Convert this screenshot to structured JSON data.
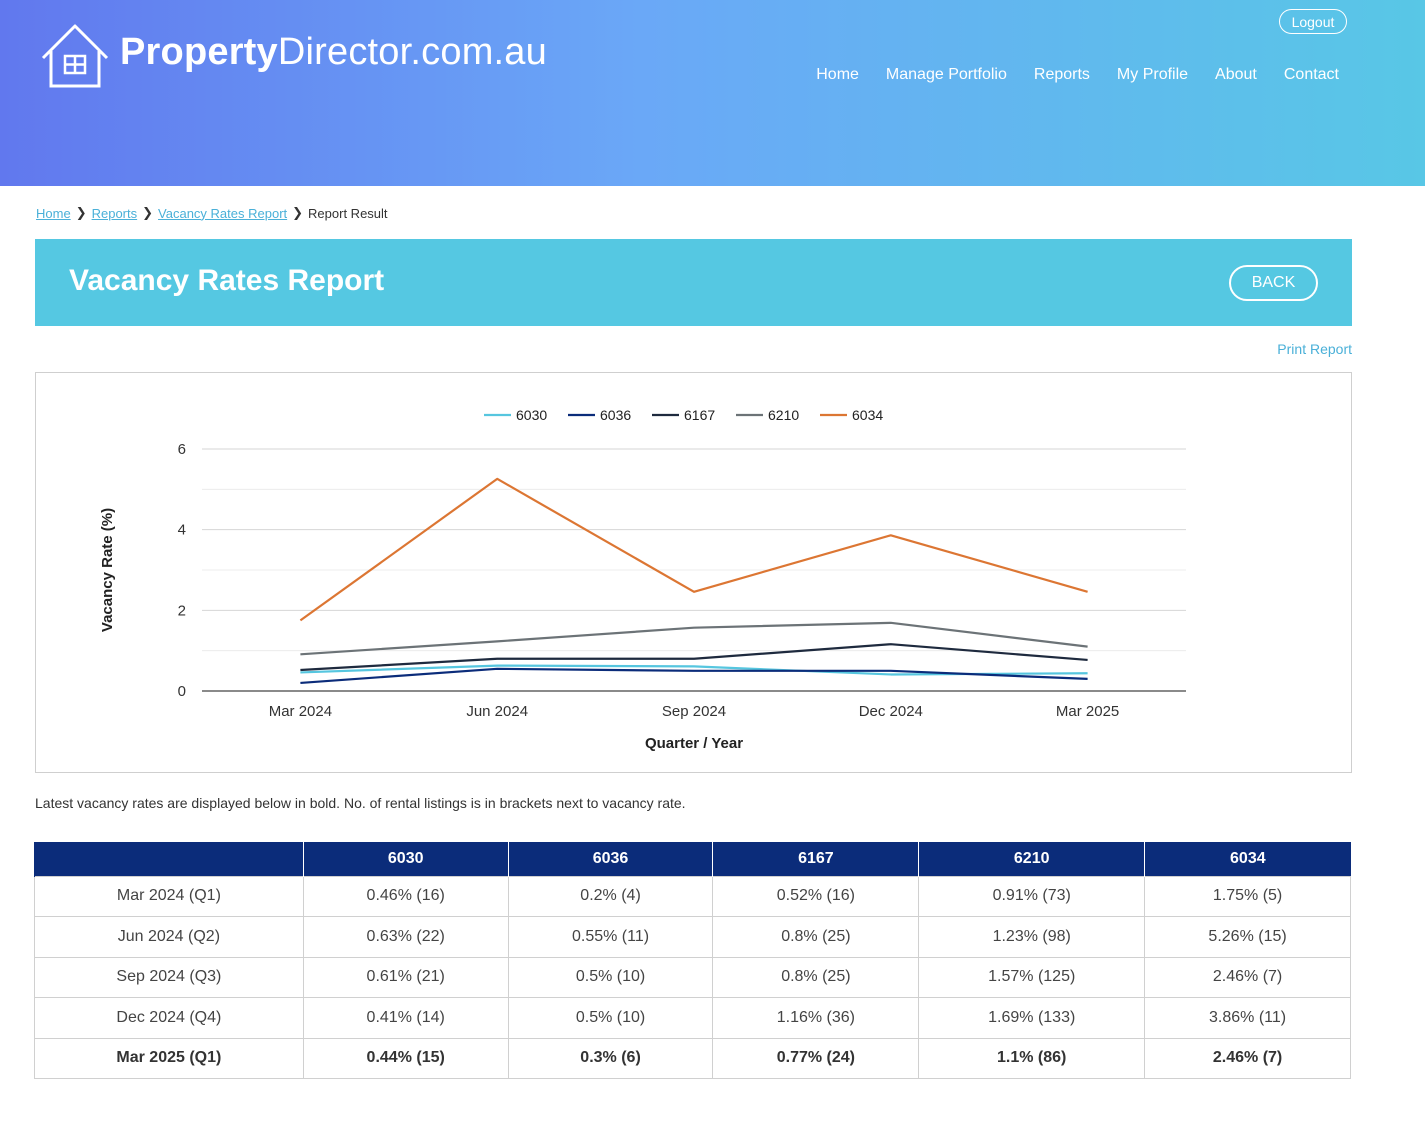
{
  "header": {
    "logo_bold": "Property",
    "logo_rest": "Director.com.au",
    "logout_label": "Logout",
    "nav": [
      "Home",
      "Manage Portfolio",
      "Reports",
      "My Profile",
      "About",
      "Contact"
    ]
  },
  "breadcrumb": {
    "items": [
      "Home",
      "Reports",
      "Vacancy Rates Report"
    ],
    "current": "Report Result"
  },
  "page": {
    "title": "Vacancy Rates Report",
    "back_label": "BACK",
    "print_label": "Print Report",
    "note": "Latest vacancy rates are displayed below in bold. No. of rental listings is in brackets next to vacancy rate."
  },
  "chart_data": {
    "type": "line",
    "categories": [
      "Mar 2024",
      "Jun 2024",
      "Sep 2024",
      "Dec 2024",
      "Mar 2025"
    ],
    "xlabel": "Quarter / Year",
    "ylabel": "Vacancy Rate (%)",
    "ylim": [
      0,
      6
    ],
    "yticks": [
      0,
      2,
      4,
      6
    ],
    "grid": true,
    "legend_position": "top-center",
    "series": [
      {
        "name": "6030",
        "color": "#56c6df",
        "values": [
          0.46,
          0.63,
          0.61,
          0.41,
          0.44
        ]
      },
      {
        "name": "6036",
        "color": "#0b2c7a",
        "values": [
          0.2,
          0.55,
          0.5,
          0.5,
          0.3
        ]
      },
      {
        "name": "6167",
        "color": "#1e2a3e",
        "values": [
          0.52,
          0.8,
          0.8,
          1.16,
          0.77
        ]
      },
      {
        "name": "6210",
        "color": "#6c7377",
        "values": [
          0.91,
          1.23,
          1.57,
          1.69,
          1.1
        ]
      },
      {
        "name": "6034",
        "color": "#dc7633",
        "values": [
          1.75,
          5.26,
          2.46,
          3.86,
          2.46
        ]
      }
    ]
  },
  "table": {
    "headers": [
      "",
      "6030",
      "6036",
      "6167",
      "6210",
      "6034"
    ],
    "rows": [
      [
        "Mar 2024 (Q1)",
        "0.46% (16)",
        "0.2% (4)",
        "0.52% (16)",
        "0.91% (73)",
        "1.75% (5)"
      ],
      [
        "Jun 2024 (Q2)",
        "0.63% (22)",
        "0.55% (11)",
        "0.8% (25)",
        "1.23% (98)",
        "5.26% (15)"
      ],
      [
        "Sep 2024 (Q3)",
        "0.61% (21)",
        "0.5% (10)",
        "0.8% (25)",
        "1.57% (125)",
        "2.46% (7)"
      ],
      [
        "Dec 2024 (Q4)",
        "0.41% (14)",
        "0.5% (10)",
        "1.16% (36)",
        "1.69% (133)",
        "3.86% (11)"
      ],
      [
        "Mar 2025 (Q1)",
        "0.44% (15)",
        "0.3% (6)",
        "0.77% (24)",
        "1.1% (86)",
        "2.46% (7)"
      ]
    ]
  }
}
